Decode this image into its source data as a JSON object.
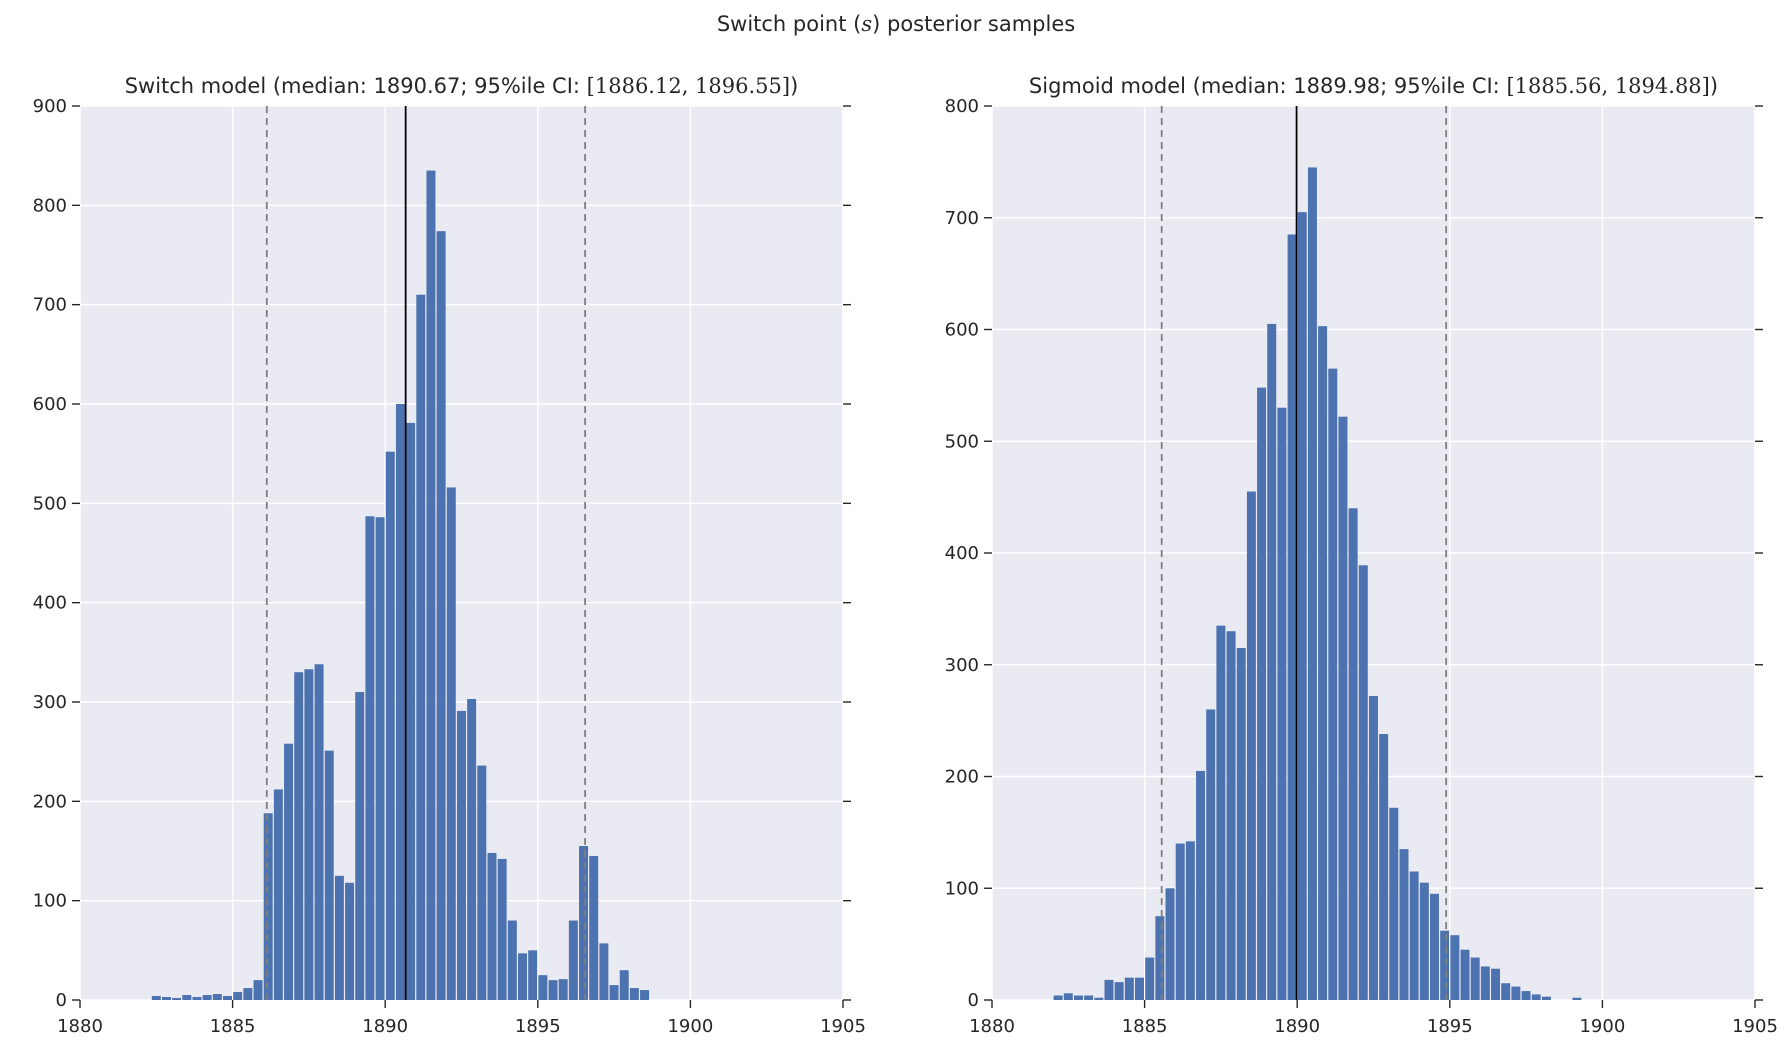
{
  "figure": {
    "title_prefix": "Switch point (",
    "title_math": "s",
    "title_suffix": ") posterior samples"
  },
  "colors": {
    "bar": "#4c72b0",
    "plot_bg": "#eaeaf2",
    "grid": "#ffffff",
    "median_line": "#000000",
    "ci_line": "#7f7f7f",
    "text": "#262626"
  },
  "chart_data": [
    {
      "type": "bar",
      "name": "Switch model",
      "title_prefix": "Switch model (median: 1890.67; 95%ile CI: ",
      "title_math": "[1886.12, 1896.55]",
      "title_suffix": ")",
      "median": 1890.67,
      "ci": [
        1886.12,
        1896.55
      ],
      "xlim": [
        1880,
        1905
      ],
      "ylim": [
        0,
        900
      ],
      "xticks": [
        1880,
        1885,
        1890,
        1895,
        1900,
        1905
      ],
      "yticks": [
        0,
        100,
        200,
        300,
        400,
        500,
        600,
        700,
        800,
        900
      ],
      "xlabel": "",
      "ylabel": "",
      "grid": true,
      "bin_start": 1882.3333,
      "bin_width": 0.3333,
      "values": [
        4,
        3,
        2,
        5,
        3,
        5,
        6,
        4,
        8,
        12,
        20,
        188,
        212,
        258,
        330,
        333,
        338,
        251,
        125,
        118,
        310,
        487,
        486,
        552,
        600,
        581,
        710,
        835,
        774,
        516,
        291,
        303,
        236,
        148,
        142,
        80,
        47,
        50,
        25,
        20,
        21,
        80,
        155,
        145,
        57,
        15,
        30,
        12,
        10
      ]
    },
    {
      "type": "bar",
      "name": "Sigmoid model",
      "title_prefix": "Sigmoid model (median: 1889.98; 95%ile CI: ",
      "title_math": "[1885.56, 1894.88]",
      "title_suffix": ")",
      "median": 1889.98,
      "ci": [
        1885.56,
        1894.88
      ],
      "xlim": [
        1880,
        1905
      ],
      "ylim": [
        0,
        800
      ],
      "xticks": [
        1880,
        1885,
        1890,
        1895,
        1900,
        1905
      ],
      "yticks": [
        0,
        100,
        200,
        300,
        400,
        500,
        600,
        700,
        800
      ],
      "xlabel": "",
      "ylabel": "",
      "grid": true,
      "bin_start": 1882.0,
      "bin_width": 0.3333,
      "values": [
        4,
        6,
        4,
        4,
        2,
        18,
        16,
        20,
        20,
        38,
        75,
        100,
        140,
        142,
        205,
        260,
        335,
        330,
        315,
        455,
        548,
        605,
        530,
        685,
        705,
        745,
        603,
        565,
        522,
        440,
        389,
        272,
        238,
        172,
        135,
        115,
        105,
        95,
        62,
        58,
        45,
        38,
        30,
        28,
        15,
        12,
        8,
        5,
        3,
        0,
        0,
        2
      ]
    }
  ]
}
